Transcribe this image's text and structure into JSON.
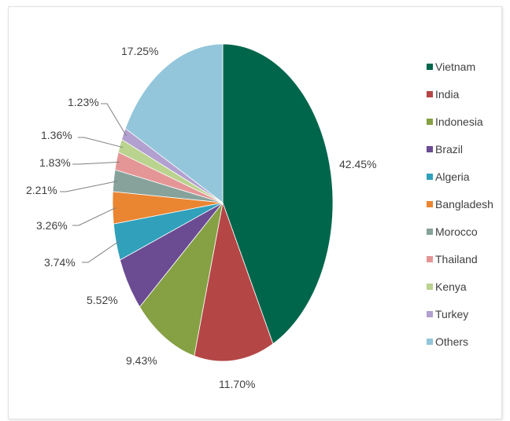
{
  "chart_data": {
    "type": "pie",
    "title": "",
    "legend_position": "right",
    "slices": [
      {
        "name": "Vietnam",
        "value": 42.45,
        "label": "42.45%",
        "color": "#00664b"
      },
      {
        "name": "India",
        "value": 11.7,
        "label": "11.70%",
        "color": "#b54646"
      },
      {
        "name": "Indonesia",
        "value": 9.43,
        "label": "9.43%",
        "color": "#86a044"
      },
      {
        "name": "Brazil",
        "value": 5.52,
        "label": "5.52%",
        "color": "#6b4c93"
      },
      {
        "name": "Algeria",
        "value": 3.74,
        "label": "3.74%",
        "color": "#31a0bb"
      },
      {
        "name": "Bangladesh",
        "value": 3.26,
        "label": "3.26%",
        "color": "#ea8532"
      },
      {
        "name": "Morocco",
        "value": 2.21,
        "label": "2.21%",
        "color": "#87a29b"
      },
      {
        "name": "Thailand",
        "value": 1.83,
        "label": "1.83%",
        "color": "#e49696"
      },
      {
        "name": "Kenya",
        "value": 1.36,
        "label": "1.36%",
        "color": "#bad38f"
      },
      {
        "name": "Turkey",
        "value": 1.23,
        "label": "1.23%",
        "color": "#b2a0d0"
      },
      {
        "name": "Others",
        "value": 17.25,
        "label": "17.25%",
        "color": "#93c6da"
      }
    ]
  }
}
